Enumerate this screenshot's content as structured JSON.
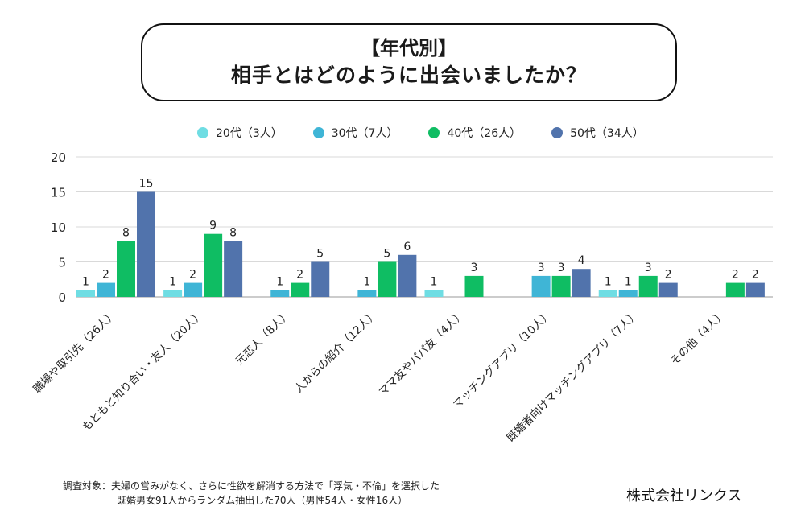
{
  "header": {
    "title_line1": "【年代別】",
    "title_line2": "相手とはどのように出会いましたか？"
  },
  "legend": [
    {
      "label": "20代（3人）",
      "color": "#6fdde3"
    },
    {
      "label": "30代（7人）",
      "color": "#3fb5d6"
    },
    {
      "label": "40代（26人）",
      "color": "#0fbd63"
    },
    {
      "label": "50代（34人）",
      "color": "#5173ac"
    }
  ],
  "chart_data": {
    "type": "bar",
    "title": "【年代別】相手とはどのように出会いましたか？",
    "xlabel": "",
    "ylabel": "",
    "ylim": [
      0,
      20
    ],
    "yticks": [
      0,
      5,
      10,
      15,
      20
    ],
    "grid": true,
    "legend_position": "top-center",
    "categories": [
      "職場や取引先（26人）",
      "もともと知り合い・友人（20人）",
      "元恋人（8人）",
      "人からの紹介（12人）",
      "ママ友やパパ友（4人）",
      "マッチングアプリ（10人）",
      "既婚者向けマッチングアプリ（7人）",
      "その他（4人）"
    ],
    "series": [
      {
        "name": "20代（3人）",
        "color": "#6fdde3",
        "values": [
          1,
          1,
          0,
          0,
          1,
          0,
          1,
          0
        ]
      },
      {
        "name": "30代（7人）",
        "color": "#3fb5d6",
        "values": [
          2,
          2,
          1,
          1,
          0,
          3,
          1,
          0
        ]
      },
      {
        "name": "40代（26人）",
        "color": "#0fbd63",
        "values": [
          8,
          9,
          2,
          5,
          3,
          3,
          3,
          2
        ]
      },
      {
        "name": "50代（34人）",
        "color": "#5173ac",
        "values": [
          15,
          8,
          5,
          6,
          0,
          4,
          2,
          2
        ]
      }
    ]
  },
  "footer": {
    "note_line1": "調査対象：夫婦の営みがなく、さらに性欲を解消する方法で「浮気・不倫」を選択した",
    "note_line2": "既婚男女91人からランダム抽出した70人（男性54人・女性16人）",
    "company": "株式会社リンクス"
  }
}
